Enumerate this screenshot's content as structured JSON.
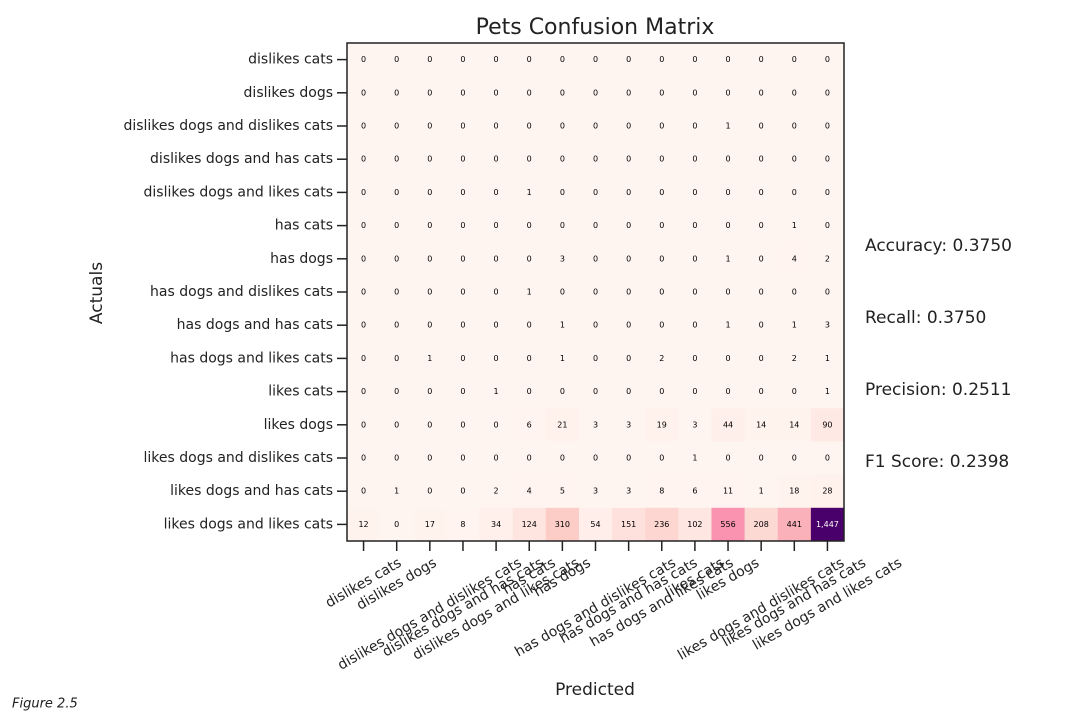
{
  "chart_data": {
    "type": "heatmap",
    "title": "Pets Confusion Matrix",
    "x_label": "Predicted",
    "y_label": "Actuals",
    "x_categories": [
      "dislikes cats",
      "dislikes dogs",
      "dislikes dogs and dislikes cats",
      "dislikes dogs and has cats",
      "dislikes dogs and likes cats",
      "has cats",
      "has dogs",
      "has dogs and dislikes cats",
      "has dogs and has cats",
      "has dogs and likes cats",
      "likes cats",
      "likes dogs",
      "likes dogs and dislikes cats",
      "likes dogs and has cats",
      "likes dogs and likes cats"
    ],
    "y_categories": [
      "dislikes cats",
      "dislikes dogs",
      "dislikes dogs and dislikes cats",
      "dislikes dogs and has cats",
      "dislikes dogs and likes cats",
      "has cats",
      "has dogs",
      "has dogs and dislikes cats",
      "has dogs and has cats",
      "has dogs and likes cats",
      "likes cats",
      "likes dogs",
      "likes dogs and dislikes cats",
      "likes dogs and has cats",
      "likes dogs and likes cats"
    ],
    "values": [
      [
        0,
        0,
        0,
        0,
        0,
        0,
        0,
        0,
        0,
        0,
        0,
        0,
        0,
        0,
        0
      ],
      [
        0,
        0,
        0,
        0,
        0,
        0,
        0,
        0,
        0,
        0,
        0,
        0,
        0,
        0,
        0
      ],
      [
        0,
        0,
        0,
        0,
        0,
        0,
        0,
        0,
        0,
        0,
        0,
        1,
        0,
        0,
        0
      ],
      [
        0,
        0,
        0,
        0,
        0,
        0,
        0,
        0,
        0,
        0,
        0,
        0,
        0,
        0,
        0
      ],
      [
        0,
        0,
        0,
        0,
        0,
        1,
        0,
        0,
        0,
        0,
        0,
        0,
        0,
        0,
        0
      ],
      [
        0,
        0,
        0,
        0,
        0,
        0,
        0,
        0,
        0,
        0,
        0,
        0,
        0,
        1,
        0
      ],
      [
        0,
        0,
        0,
        0,
        0,
        0,
        3,
        0,
        0,
        0,
        0,
        1,
        0,
        4,
        2
      ],
      [
        0,
        0,
        0,
        0,
        0,
        1,
        0,
        0,
        0,
        0,
        0,
        0,
        0,
        0,
        0
      ],
      [
        0,
        0,
        0,
        0,
        0,
        0,
        1,
        0,
        0,
        0,
        0,
        1,
        0,
        1,
        3
      ],
      [
        0,
        0,
        1,
        0,
        0,
        0,
        1,
        0,
        0,
        2,
        0,
        0,
        0,
        2,
        1
      ],
      [
        0,
        0,
        0,
        0,
        1,
        0,
        0,
        0,
        0,
        0,
        0,
        0,
        0,
        0,
        1
      ],
      [
        0,
        0,
        0,
        0,
        0,
        6,
        21,
        3,
        3,
        19,
        3,
        44,
        14,
        14,
        90
      ],
      [
        0,
        0,
        0,
        0,
        0,
        0,
        0,
        0,
        0,
        0,
        1,
        0,
        0,
        0,
        0
      ],
      [
        0,
        1,
        0,
        0,
        2,
        4,
        5,
        3,
        3,
        8,
        6,
        11,
        1,
        18,
        28
      ],
      [
        12,
        0,
        17,
        8,
        34,
        124,
        310,
        54,
        151,
        236,
        102,
        556,
        208,
        441,
        1447
      ]
    ],
    "value_labels": [
      [
        "0",
        "0",
        "0",
        "0",
        "0",
        "0",
        "0",
        "0",
        "0",
        "0",
        "0",
        "0",
        "0",
        "0",
        "0"
      ],
      [
        "0",
        "0",
        "0",
        "0",
        "0",
        "0",
        "0",
        "0",
        "0",
        "0",
        "0",
        "0",
        "0",
        "0",
        "0"
      ],
      [
        "0",
        "0",
        "0",
        "0",
        "0",
        "0",
        "0",
        "0",
        "0",
        "0",
        "0",
        "1",
        "0",
        "0",
        "0"
      ],
      [
        "0",
        "0",
        "0",
        "0",
        "0",
        "0",
        "0",
        "0",
        "0",
        "0",
        "0",
        "0",
        "0",
        "0",
        "0"
      ],
      [
        "0",
        "0",
        "0",
        "0",
        "0",
        "1",
        "0",
        "0",
        "0",
        "0",
        "0",
        "0",
        "0",
        "0",
        "0"
      ],
      [
        "0",
        "0",
        "0",
        "0",
        "0",
        "0",
        "0",
        "0",
        "0",
        "0",
        "0",
        "0",
        "0",
        "1",
        "0"
      ],
      [
        "0",
        "0",
        "0",
        "0",
        "0",
        "0",
        "3",
        "0",
        "0",
        "0",
        "0",
        "1",
        "0",
        "4",
        "2"
      ],
      [
        "0",
        "0",
        "0",
        "0",
        "0",
        "1",
        "0",
        "0",
        "0",
        "0",
        "0",
        "0",
        "0",
        "0",
        "0"
      ],
      [
        "0",
        "0",
        "0",
        "0",
        "0",
        "0",
        "1",
        "0",
        "0",
        "0",
        "0",
        "1",
        "0",
        "1",
        "3"
      ],
      [
        "0",
        "0",
        "1",
        "0",
        "0",
        "0",
        "1",
        "0",
        "0",
        "2",
        "0",
        "0",
        "0",
        "2",
        "1"
      ],
      [
        "0",
        "0",
        "0",
        "0",
        "1",
        "0",
        "0",
        "0",
        "0",
        "0",
        "0",
        "0",
        "0",
        "0",
        "1"
      ],
      [
        "0",
        "0",
        "0",
        "0",
        "0",
        "6",
        "21",
        "3",
        "3",
        "19",
        "3",
        "44",
        "14",
        "14",
        "90"
      ],
      [
        "0",
        "0",
        "0",
        "0",
        "0",
        "0",
        "0",
        "0",
        "0",
        "0",
        "1",
        "0",
        "0",
        "0",
        "0"
      ],
      [
        "0",
        "1",
        "0",
        "0",
        "2",
        "4",
        "5",
        "3",
        "3",
        "8",
        "6",
        "11",
        "1",
        "18",
        "28"
      ],
      [
        "12",
        "0",
        "17",
        "8",
        "34",
        "124",
        "310",
        "54",
        "151",
        "236",
        "102",
        "556",
        "208",
        "441",
        "1,447"
      ]
    ],
    "cmap": [
      "#fff5f0",
      "#fcc5c0",
      "#f768a1",
      "#ae017e",
      "#49006a"
    ],
    "annotations": [
      "Accuracy: 0.3750",
      "Recall: 0.3750",
      "Precision: 0.2511",
      "F1 Score: 0.2398"
    ]
  },
  "caption": "Figure 2.5"
}
